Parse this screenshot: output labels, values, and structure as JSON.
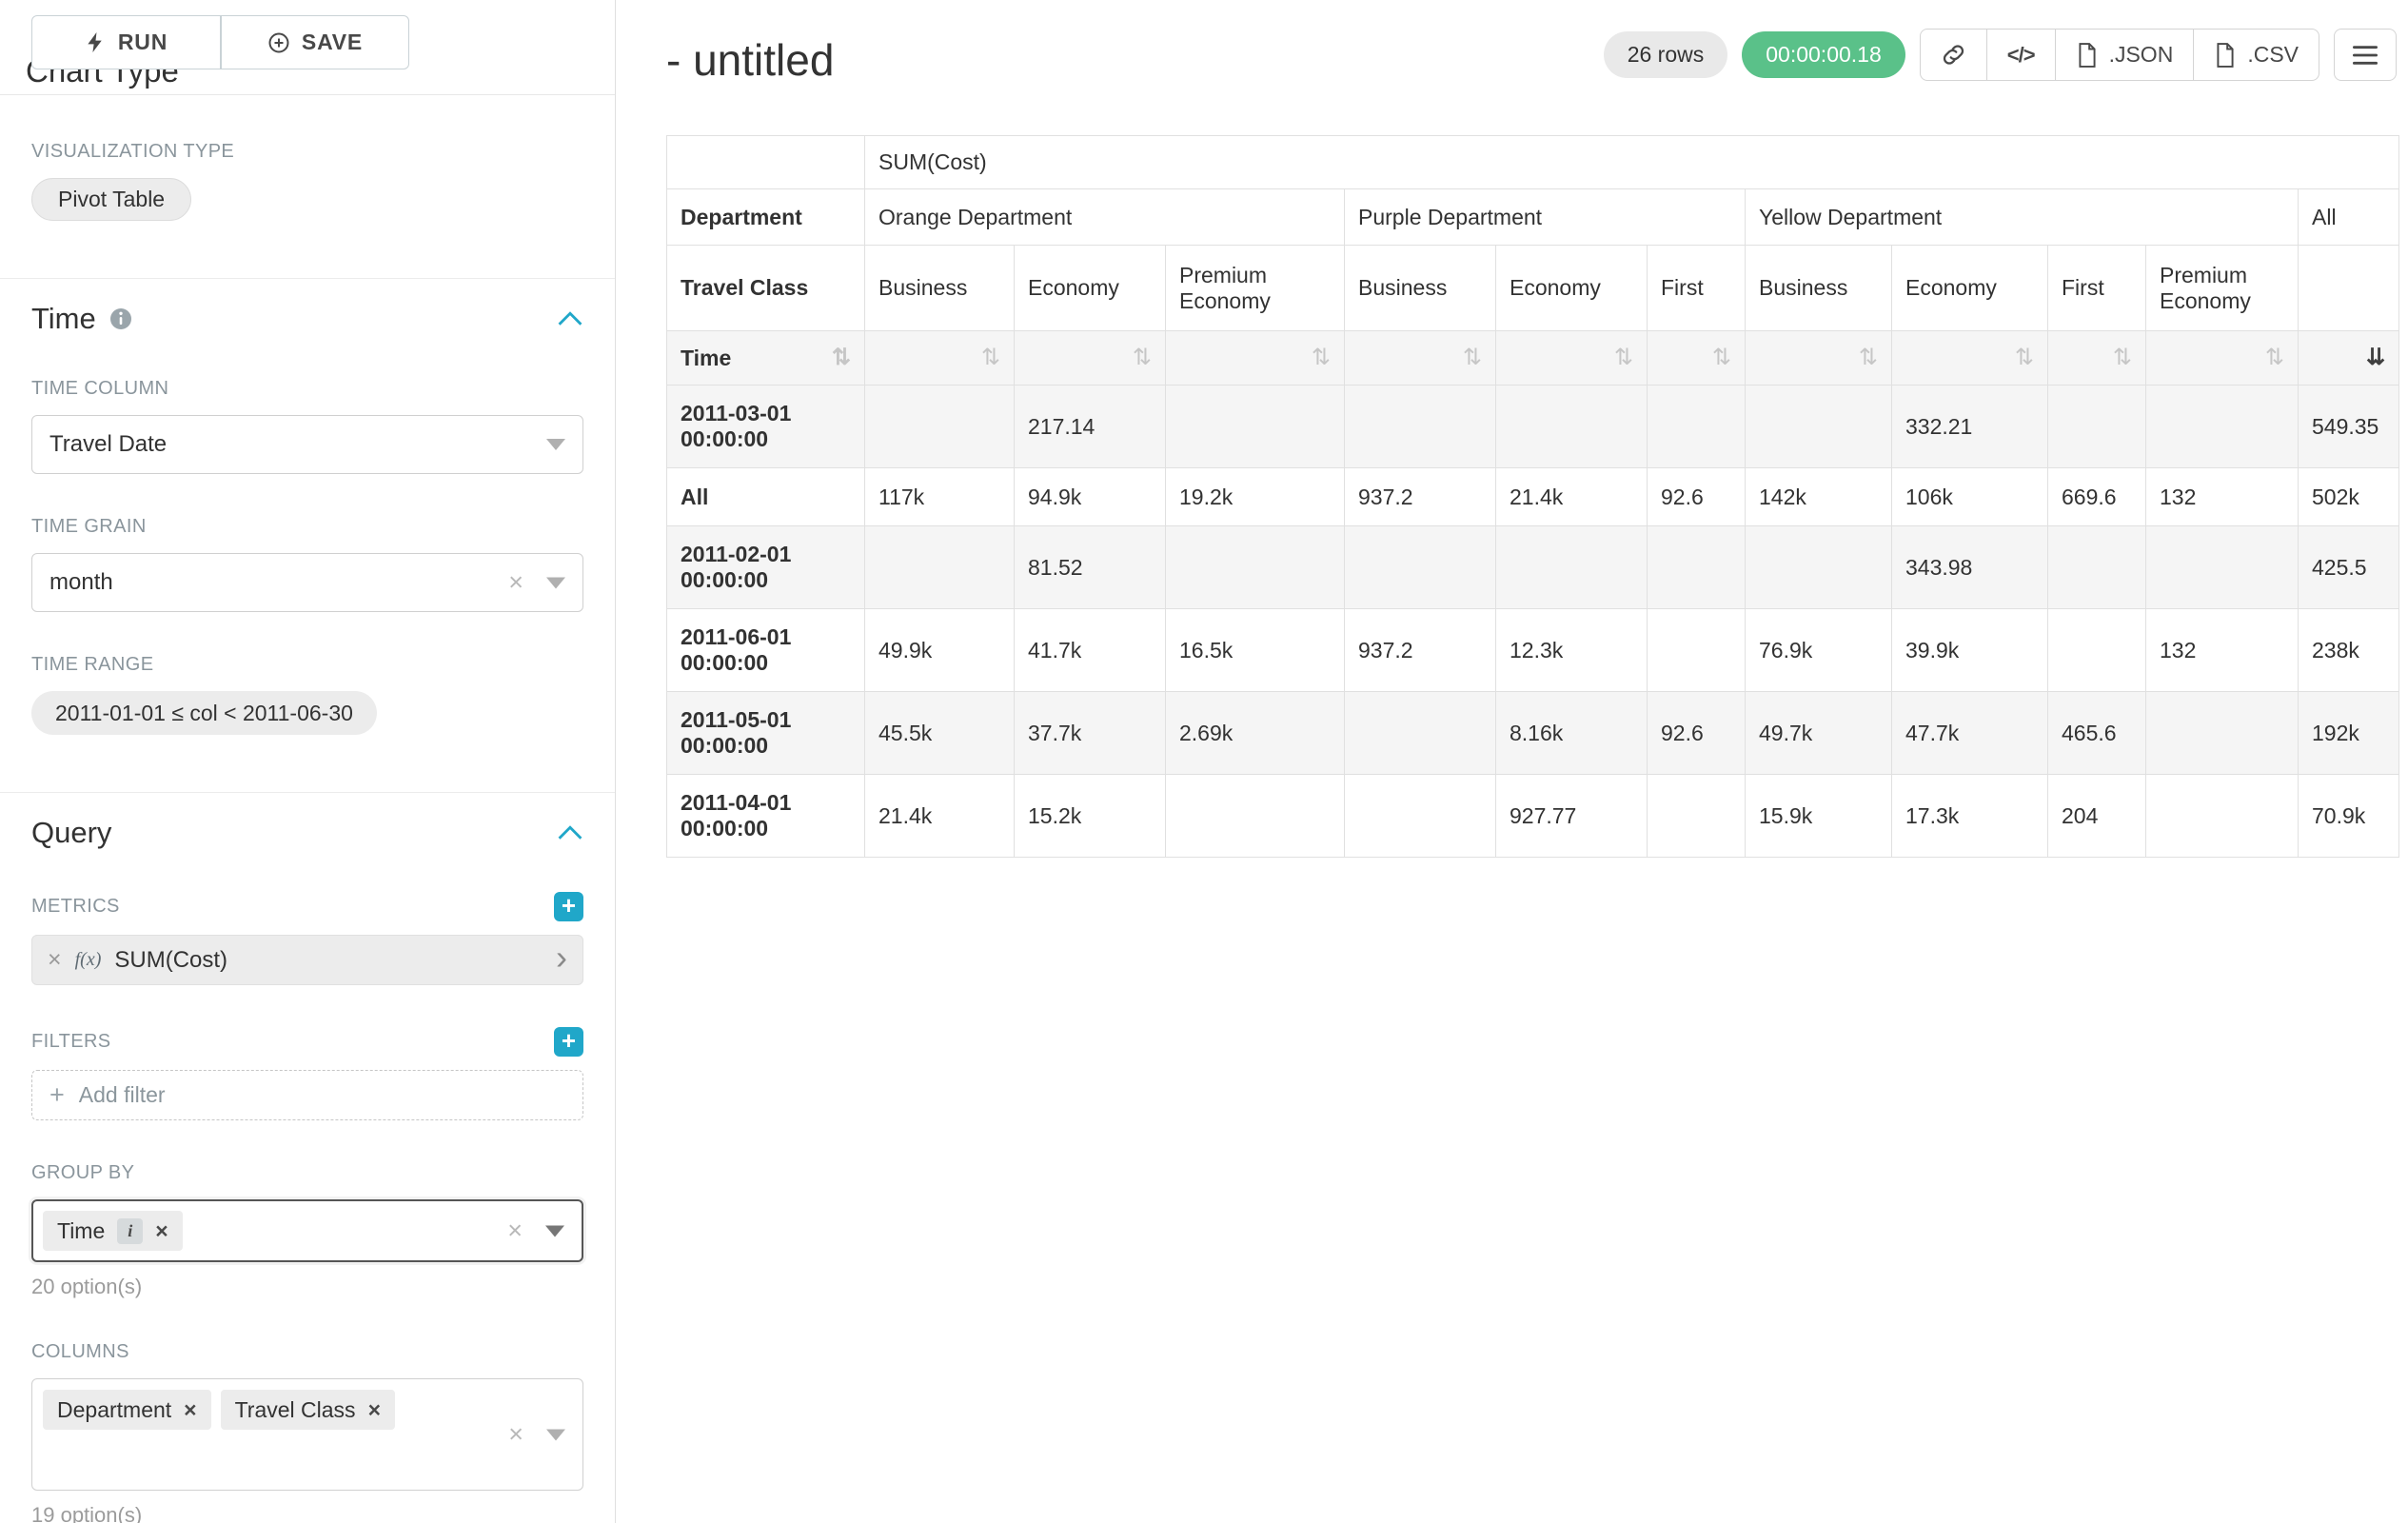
{
  "app": {
    "accent_color": "#20a7c9",
    "success_color": "#5ac189"
  },
  "icons": {
    "close": "×",
    "plus": "+",
    "info": "i",
    "chevron_right": "›",
    "sort_unsorted": "⇅",
    "sort_desc": "⇊",
    "code_glyph": "</>"
  },
  "sidebar": {
    "run_button": "RUN",
    "save_button": "SAVE",
    "chart_type_heading": "Chart Type",
    "visualization": {
      "label": "VISUALIZATION TYPE",
      "value": "Pivot Table"
    },
    "time_section": {
      "title": "Time",
      "time_column": {
        "label": "TIME COLUMN",
        "value": "Travel Date"
      },
      "time_grain": {
        "label": "TIME GRAIN",
        "value": "month"
      },
      "time_range": {
        "label": "TIME RANGE",
        "value": "2011-01-01 ≤ col < 2011-06-30"
      }
    },
    "query_section": {
      "title": "Query",
      "metrics": {
        "label": "METRICS",
        "fx": "f(x)",
        "value": "SUM(Cost)"
      },
      "filters": {
        "label": "FILTERS",
        "add_label": "Add filter"
      },
      "group_by": {
        "label": "GROUP BY",
        "tags": [
          "Time"
        ],
        "hint": "20 option(s)"
      },
      "columns": {
        "label": "COLUMNS",
        "tags": [
          "Department",
          "Travel Class"
        ],
        "hint": "19 option(s)"
      }
    }
  },
  "header": {
    "title": "- untitled",
    "rows_badge": "26 rows",
    "timer_badge": "00:00:00.18",
    "buttons": {
      "json": ".JSON",
      "csv": ".CSV"
    }
  },
  "chart_data": {
    "type": "table",
    "metric_header": "SUM(Cost)",
    "col_axis_label": "Department",
    "col_axis2_label": "Travel Class",
    "row_axis_label": "Time",
    "all_column_label": "All",
    "all_row_label": "All",
    "sort": {
      "column": "All",
      "direction": "desc"
    },
    "column_groups": [
      {
        "name": "Orange Department",
        "classes": [
          "Business",
          "Economy",
          "Premium Economy"
        ]
      },
      {
        "name": "Purple Department",
        "classes": [
          "Business",
          "Economy",
          "First"
        ]
      },
      {
        "name": "Yellow Department",
        "classes": [
          "Business",
          "Economy",
          "First",
          "Premium Economy"
        ]
      }
    ],
    "rows": [
      {
        "label": "2011-03-01 00:00:00",
        "values": [
          "",
          "217.14",
          "",
          "",
          "",
          "",
          "",
          "332.21",
          "",
          "",
          "549.35"
        ]
      },
      {
        "label": "All",
        "values": [
          "117k",
          "94.9k",
          "19.2k",
          "937.2",
          "21.4k",
          "92.6",
          "142k",
          "106k",
          "669.6",
          "132",
          "502k"
        ]
      },
      {
        "label": "2011-02-01 00:00:00",
        "values": [
          "",
          "81.52",
          "",
          "",
          "",
          "",
          "",
          "343.98",
          "",
          "",
          "425.5"
        ]
      },
      {
        "label": "2011-06-01 00:00:00",
        "values": [
          "49.9k",
          "41.7k",
          "16.5k",
          "937.2",
          "12.3k",
          "",
          "76.9k",
          "39.9k",
          "",
          "132",
          "238k"
        ]
      },
      {
        "label": "2011-05-01 00:00:00",
        "values": [
          "45.5k",
          "37.7k",
          "2.69k",
          "",
          "8.16k",
          "92.6",
          "49.7k",
          "47.7k",
          "465.6",
          "",
          "192k"
        ]
      },
      {
        "label": "2011-04-01 00:00:00",
        "values": [
          "21.4k",
          "15.2k",
          "",
          "",
          "927.77",
          "",
          "15.9k",
          "17.3k",
          "204",
          "",
          "70.9k"
        ]
      }
    ]
  }
}
